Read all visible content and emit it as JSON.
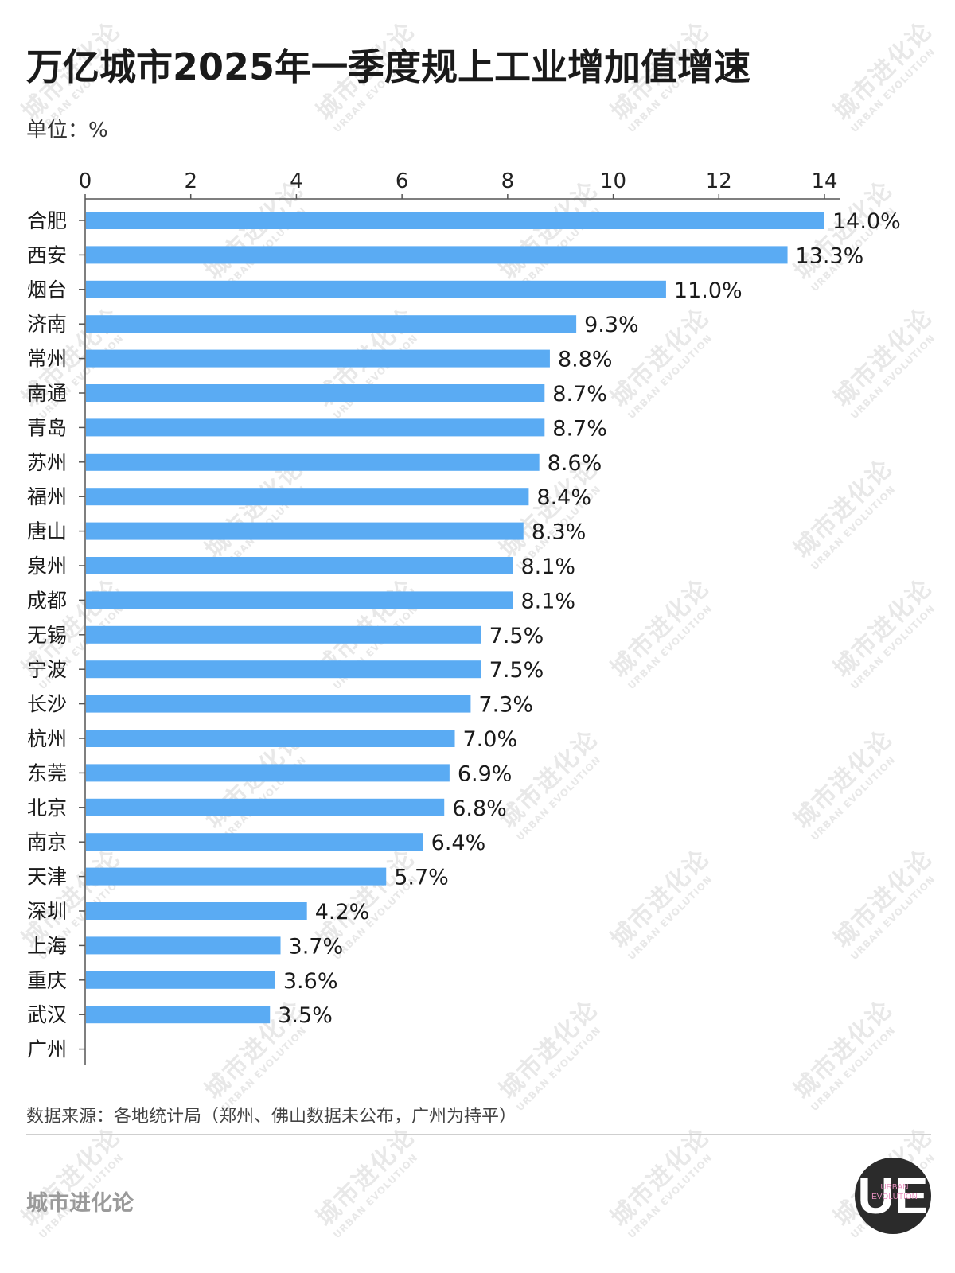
{
  "title": "万亿城市2025年一季度规上工业增加值增速",
  "unit_label": "单位：%",
  "source": "数据来源：各地统计局（郑州、佛山数据未公布，广州为持平）",
  "brand": "城市进化论",
  "logo": {
    "letters": "UE",
    "text_line1": "URBAN",
    "text_line2": "EVOLUTION"
  },
  "watermark": {
    "text": "城市进化论",
    "subtext": "URBAN EVOLUTION"
  },
  "colors": {
    "bar": "#5aabf3",
    "axis": "#555555",
    "text": "#1a1a1a"
  },
  "chart_data": {
    "type": "bar",
    "orientation": "horizontal",
    "categories": [
      "合肥",
      "西安",
      "烟台",
      "济南",
      "常州",
      "南通",
      "青岛",
      "苏州",
      "福州",
      "唐山",
      "泉州",
      "成都",
      "无锡",
      "宁波",
      "长沙",
      "杭州",
      "东莞",
      "北京",
      "南京",
      "天津",
      "深圳",
      "上海",
      "重庆",
      "武汉",
      "广州"
    ],
    "values": [
      14.0,
      13.3,
      11.0,
      9.3,
      8.8,
      8.7,
      8.7,
      8.6,
      8.4,
      8.3,
      8.1,
      8.1,
      7.5,
      7.5,
      7.3,
      7.0,
      6.9,
      6.8,
      6.4,
      5.7,
      4.2,
      3.7,
      3.6,
      3.5,
      0
    ],
    "data_labels": [
      "14.0%",
      "13.3%",
      "11.0%",
      "9.3%",
      "8.8%",
      "8.7%",
      "8.7%",
      "8.6%",
      "8.4%",
      "8.3%",
      "8.1%",
      "8.1%",
      "7.5%",
      "7.5%",
      "7.3%",
      "7.0%",
      "6.9%",
      "6.8%",
      "6.4%",
      "5.7%",
      "4.2%",
      "3.7%",
      "3.6%",
      "3.5%",
      ""
    ],
    "xticks": [
      0,
      2,
      4,
      6,
      8,
      10,
      12,
      14
    ],
    "xlim": [
      0,
      14
    ],
    "x_axis_position": "top",
    "grid": false,
    "legend": "none"
  }
}
